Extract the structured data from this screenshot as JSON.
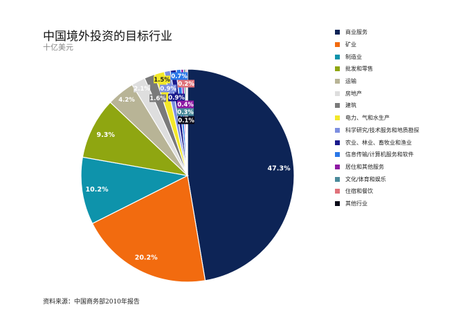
{
  "chart_data": {
    "type": "pie",
    "title": "中国境外投资的目标行业",
    "subtitle": "十亿美元",
    "source": "资料来源：中国商务部2010年报告",
    "legend_position": "right",
    "slices": [
      {
        "label": "商业服务",
        "value": 47.3,
        "value_label": "47.3%",
        "color": "#0d2456"
      },
      {
        "label": "矿业",
        "value": 20.2,
        "value_label": "20.2%",
        "color": "#f26b0f"
      },
      {
        "label": "制造业",
        "value": 10.2,
        "value_label": "10.2%",
        "color": "#0e93ab"
      },
      {
        "label": "批发和零售",
        "value": 9.3,
        "value_label": "9.3%",
        "color": "#8fa611"
      },
      {
        "label": "运输",
        "value": 4.2,
        "value_label": "4.2%",
        "color": "#b8b496"
      },
      {
        "label": "房地产",
        "value": 2.1,
        "value_label": "2.1%",
        "color": "#dedede"
      },
      {
        "label": "建筑",
        "value": 1.6,
        "value_label": "1.6%",
        "color": "#7a7a7a"
      },
      {
        "label": "电力、气和水生产",
        "value": 1.5,
        "value_label": "1.5%",
        "color": "#f3e82a"
      },
      {
        "label": "科学研究/技术服务和地质勘探",
        "value": 0.9,
        "value_label": "0.9%",
        "color": "#7d8fe0"
      },
      {
        "label": "农业、林业、畜牧业和渔业",
        "value": 0.9,
        "value_label": "0.9%",
        "color": "#1a1a8c"
      },
      {
        "label": "信息传输/计算机服务和软件",
        "value": 0.7,
        "value_label": "0.7%",
        "color": "#2a78e8"
      },
      {
        "label": "居住和其他服务",
        "value": 0.4,
        "value_label": "0.4%",
        "color": "#8e1aa3"
      },
      {
        "label": "文化/体育和娱乐",
        "value": 0.3,
        "value_label": "0.3%",
        "color": "#4a8a9a"
      },
      {
        "label": "住宿和餐饮",
        "value": 0.2,
        "value_label": "0.2%",
        "color": "#e0727a"
      },
      {
        "label": "其他行业",
        "value": 0.1,
        "value_label": "0.1%",
        "color": "#0a0a18"
      }
    ]
  }
}
